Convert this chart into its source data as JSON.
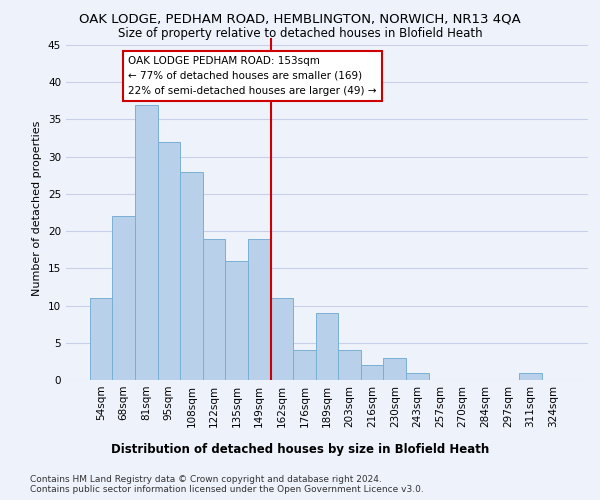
{
  "title": "OAK LODGE, PEDHAM ROAD, HEMBLINGTON, NORWICH, NR13 4QA",
  "subtitle": "Size of property relative to detached houses in Blofield Heath",
  "xlabel": "Distribution of detached houses by size in Blofield Heath",
  "ylabel": "Number of detached properties",
  "footnote1": "Contains HM Land Registry data © Crown copyright and database right 2024.",
  "footnote2": "Contains public sector information licensed under the Open Government Licence v3.0.",
  "bar_labels": [
    "54sqm",
    "68sqm",
    "81sqm",
    "95sqm",
    "108sqm",
    "122sqm",
    "135sqm",
    "149sqm",
    "162sqm",
    "176sqm",
    "189sqm",
    "203sqm",
    "216sqm",
    "230sqm",
    "243sqm",
    "257sqm",
    "270sqm",
    "284sqm",
    "297sqm",
    "311sqm",
    "324sqm"
  ],
  "bar_values": [
    11,
    22,
    37,
    32,
    28,
    19,
    16,
    19,
    11,
    4,
    9,
    4,
    2,
    3,
    1,
    0,
    0,
    0,
    0,
    1,
    0
  ],
  "bar_color": "#b8d0ea",
  "bar_edge_color": "#7aafd4",
  "background_color": "#eef2fb",
  "grid_color": "#c8cfe8",
  "vline_x_index": 7.5,
  "vline_color": "#cc0000",
  "annotation_lines": [
    "OAK LODGE PEDHAM ROAD: 153sqm",
    "← 77% of detached houses are smaller (169)",
    "22% of semi-detached houses are larger (49) →"
  ],
  "ylim": [
    0,
    46
  ],
  "yticks": [
    0,
    5,
    10,
    15,
    20,
    25,
    30,
    35,
    40,
    45
  ],
  "title_fontsize": 9.5,
  "subtitle_fontsize": 8.5,
  "annotation_fontsize": 7.5,
  "axis_label_fontsize": 8.5,
  "ylabel_fontsize": 8.0,
  "tick_fontsize": 7.5,
  "footnote_fontsize": 6.5
}
